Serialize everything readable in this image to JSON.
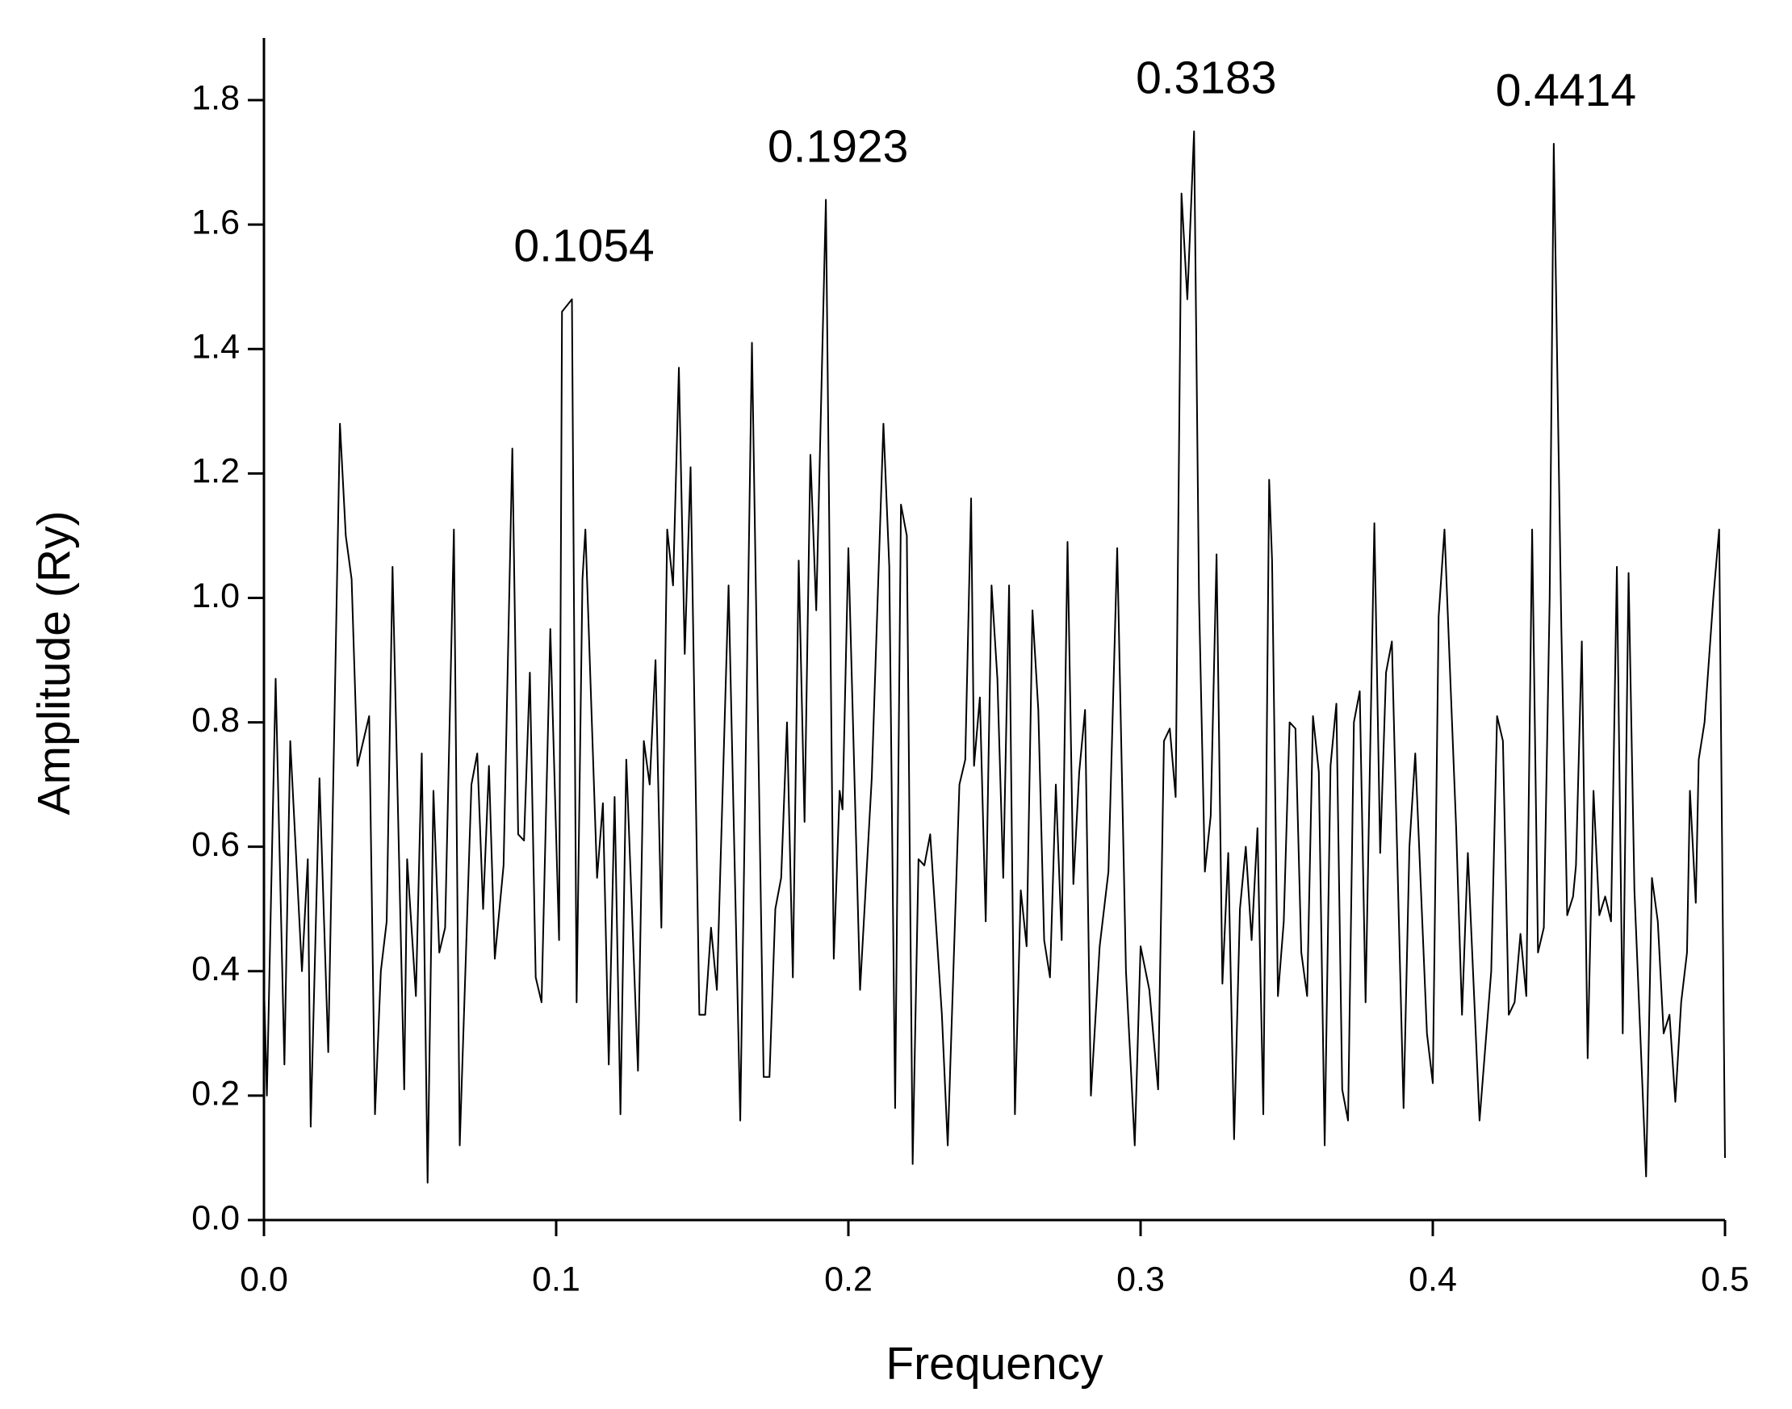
{
  "chart_data": {
    "type": "line",
    "x_label": "Frequency",
    "y_label": "Amplitude (Ry)",
    "xlim": [
      0,
      0.5
    ],
    "ylim": [
      0,
      1.9
    ],
    "xticks": [
      {
        "value": 0,
        "label": "0.0"
      },
      0.1,
      0.2,
      0.3,
      0.4,
      0.5
    ],
    "yticks": [
      {
        "value": 0,
        "label": "0.0"
      },
      0.2,
      0.4,
      0.6,
      0.8,
      {
        "value": 1,
        "label": "1.0"
      },
      1.2,
      1.4,
      1.6,
      1.8
    ],
    "annotations": [
      "0.1054",
      "0.1923",
      "0.3183",
      "0.4414"
    ],
    "series": [
      {
        "color": "#000000",
        "x": [
          0,
          0.001,
          0.004,
          0.007,
          0.009,
          0.013,
          0.015,
          0.016,
          0.019,
          0.022,
          0.026,
          0.028,
          0.03,
          0.032,
          0.036,
          0.038,
          0.04,
          0.042,
          0.044,
          0.048,
          0.049,
          0.052,
          0.054,
          0.056,
          0.058,
          0.06,
          0.062,
          0.065,
          0.067,
          0.071,
          0.073,
          0.075,
          0.077,
          0.079,
          0.082,
          0.085,
          0.087,
          0.089,
          0.091,
          0.093,
          0.095,
          0.098,
          0.101,
          0.102,
          0.1054,
          0.107,
          0.109,
          0.11,
          0.114,
          0.116,
          0.118,
          0.12,
          0.122,
          0.124,
          0.128,
          0.13,
          0.132,
          0.134,
          0.136,
          0.138,
          0.14,
          0.142,
          0.144,
          0.146,
          0.149,
          0.151,
          0.153,
          0.155,
          0.159,
          0.163,
          0.167,
          0.171,
          0.173,
          0.175,
          0.177,
          0.179,
          0.181,
          0.183,
          0.185,
          0.187,
          0.189,
          0.1923,
          0.195,
          0.197,
          0.198,
          0.2,
          0.204,
          0.208,
          0.212,
          0.214,
          0.216,
          0.218,
          0.22,
          0.222,
          0.224,
          0.226,
          0.228,
          0.232,
          0.234,
          0.238,
          0.24,
          0.242,
          0.243,
          0.245,
          0.247,
          0.249,
          0.251,
          0.253,
          0.255,
          0.257,
          0.259,
          0.261,
          0.263,
          0.265,
          0.267,
          0.269,
          0.271,
          0.273,
          0.275,
          0.277,
          0.279,
          0.281,
          0.283,
          0.286,
          0.289,
          0.292,
          0.295,
          0.298,
          0.3,
          0.303,
          0.306,
          0.308,
          0.31,
          0.312,
          0.314,
          0.316,
          0.3183,
          0.32,
          0.322,
          0.324,
          0.326,
          0.328,
          0.33,
          0.332,
          0.334,
          0.336,
          0.338,
          0.34,
          0.342,
          0.344,
          0.345,
          0.347,
          0.349,
          0.351,
          0.353,
          0.355,
          0.357,
          0.359,
          0.361,
          0.363,
          0.365,
          0.367,
          0.369,
          0.371,
          0.373,
          0.375,
          0.377,
          0.38,
          0.382,
          0.384,
          0.386,
          0.39,
          0.392,
          0.394,
          0.398,
          0.4,
          0.402,
          0.404,
          0.408,
          0.41,
          0.412,
          0.416,
          0.42,
          0.422,
          0.424,
          0.426,
          0.428,
          0.43,
          0.432,
          0.434,
          0.436,
          0.438,
          0.44,
          0.4414,
          0.444,
          0.446,
          0.448,
          0.449,
          0.451,
          0.453,
          0.455,
          0.457,
          0.459,
          0.461,
          0.463,
          0.465,
          0.467,
          0.469,
          0.473,
          0.475,
          0.477,
          0.479,
          0.481,
          0.483,
          0.485,
          0.487,
          0.488,
          0.49,
          0.491,
          0.493,
          0.496,
          0.498,
          0.5
        ],
        "values": [
          0.38,
          0.2,
          0.87,
          0.25,
          0.77,
          0.4,
          0.58,
          0.15,
          0.71,
          0.27,
          1.28,
          1.1,
          1.03,
          0.73,
          0.81,
          0.17,
          0.4,
          0.48,
          1.05,
          0.21,
          0.58,
          0.36,
          0.75,
          0.06,
          0.69,
          0.43,
          0.47,
          1.11,
          0.12,
          0.7,
          0.75,
          0.5,
          0.73,
          0.42,
          0.57,
          1.24,
          0.62,
          0.61,
          0.88,
          0.39,
          0.35,
          0.95,
          0.45,
          1.46,
          1.48,
          0.35,
          1.03,
          1.11,
          0.55,
          0.67,
          0.25,
          0.68,
          0.17,
          0.74,
          0.24,
          0.77,
          0.7,
          0.9,
          0.47,
          1.11,
          1.02,
          1.37,
          0.91,
          1.21,
          0.33,
          0.33,
          0.47,
          0.37,
          1.02,
          0.16,
          1.41,
          0.23,
          0.23,
          0.5,
          0.55,
          0.8,
          0.39,
          1.06,
          0.64,
          1.23,
          0.98,
          1.64,
          0.42,
          0.69,
          0.66,
          1.08,
          0.37,
          0.71,
          1.28,
          1.05,
          0.18,
          1.15,
          1.1,
          0.09,
          0.58,
          0.57,
          0.62,
          0.33,
          0.12,
          0.7,
          0.74,
          1.16,
          0.73,
          0.84,
          0.48,
          1.02,
          0.87,
          0.55,
          1.02,
          0.17,
          0.53,
          0.44,
          0.98,
          0.82,
          0.45,
          0.39,
          0.7,
          0.45,
          1.09,
          0.54,
          0.72,
          0.82,
          0.2,
          0.44,
          0.56,
          1.08,
          0.4,
          0.12,
          0.44,
          0.37,
          0.21,
          0.77,
          0.79,
          0.68,
          1.65,
          1.48,
          1.75,
          1.0,
          0.56,
          0.65,
          1.07,
          0.38,
          0.59,
          0.13,
          0.5,
          0.6,
          0.45,
          0.63,
          0.17,
          1.19,
          1.06,
          0.36,
          0.48,
          0.8,
          0.79,
          0.43,
          0.36,
          0.81,
          0.72,
          0.12,
          0.73,
          0.83,
          0.21,
          0.16,
          0.8,
          0.85,
          0.35,
          1.12,
          0.59,
          0.88,
          0.93,
          0.18,
          0.6,
          0.75,
          0.3,
          0.22,
          0.97,
          1.11,
          0.63,
          0.33,
          0.59,
          0.16,
          0.4,
          0.81,
          0.77,
          0.33,
          0.35,
          0.46,
          0.36,
          1.11,
          0.43,
          0.47,
          1.0,
          1.73,
          0.95,
          0.49,
          0.52,
          0.57,
          0.93,
          0.26,
          0.69,
          0.49,
          0.52,
          0.48,
          1.05,
          0.3,
          1.04,
          0.53,
          0.07,
          0.55,
          0.48,
          0.3,
          0.33,
          0.19,
          0.35,
          0.43,
          0.69,
          0.51,
          0.74,
          0.8,
          1.0,
          1.11,
          0.1
        ]
      }
    ]
  }
}
